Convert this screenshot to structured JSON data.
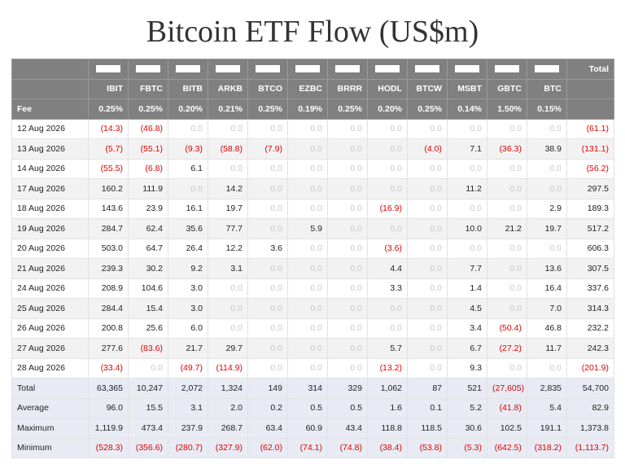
{
  "title": "Bitcoin ETF Flow (US$m)",
  "table": {
    "total_header": "Total",
    "tickers": [
      "IBIT",
      "FBTC",
      "BITB",
      "ARKB",
      "BTCO",
      "EZBC",
      "BRRR",
      "HODL",
      "BTCW",
      "MSBT",
      "GBTC",
      "BTC"
    ],
    "fee": {
      "label": "Fee",
      "values": [
        "0.25%",
        "0.25%",
        "0.20%",
        "0.21%",
        "0.25%",
        "0.19%",
        "0.25%",
        "0.20%",
        "0.25%",
        "0.14%",
        "1.50%",
        "0.15%"
      ]
    },
    "rows": [
      [
        "12 Aug 2026",
        "(14.3)",
        "(46.8)",
        "0.0",
        "0.0",
        "0.0",
        "0.0",
        "0.0",
        "0.0",
        "0.0",
        "0.0",
        "0.0",
        "0.0",
        "(61.1)"
      ],
      [
        "13 Aug 2026",
        "(5.7)",
        "(55.1)",
        "(9.3)",
        "(58.8)",
        "(7.9)",
        "0.0",
        "0.0",
        "0.0",
        "(4.0)",
        "7.1",
        "(36.3)",
        "38.9",
        "(131.1)"
      ],
      [
        "14 Aug 2026",
        "(55.5)",
        "(6.8)",
        "6.1",
        "0.0",
        "0.0",
        "0.0",
        "0.0",
        "0.0",
        "0.0",
        "0.0",
        "0.0",
        "0.0",
        "(56.2)"
      ],
      [
        "17 Aug 2026",
        "160.2",
        "111.9",
        "0.0",
        "14.2",
        "0.0",
        "0.0",
        "0.0",
        "0.0",
        "0.0",
        "11.2",
        "0.0",
        "0.0",
        "297.5"
      ],
      [
        "18 Aug 2026",
        "143.6",
        "23.9",
        "16.1",
        "19.7",
        "0.0",
        "0.0",
        "0.0",
        "(16.9)",
        "0.0",
        "0.0",
        "0.0",
        "2.9",
        "189.3"
      ],
      [
        "19 Aug 2026",
        "284.7",
        "62.4",
        "35.6",
        "77.7",
        "0.0",
        "5.9",
        "0.0",
        "0.0",
        "0.0",
        "10.0",
        "21.2",
        "19.7",
        "517.2"
      ],
      [
        "20 Aug 2026",
        "503.0",
        "64.7",
        "26.4",
        "12.2",
        "3.6",
        "0.0",
        "0.0",
        "(3.6)",
        "0.0",
        "0.0",
        "0.0",
        "0.0",
        "606.3"
      ],
      [
        "21 Aug 2026",
        "239.3",
        "30.2",
        "9.2",
        "3.1",
        "0.0",
        "0.0",
        "0.0",
        "4.4",
        "0.0",
        "7.7",
        "0.0",
        "13.6",
        "307.5"
      ],
      [
        "24 Aug 2026",
        "208.9",
        "104.6",
        "3.0",
        "0.0",
        "0.0",
        "0.0",
        "0.0",
        "3.3",
        "0.0",
        "1.4",
        "0.0",
        "16.4",
        "337.6"
      ],
      [
        "25 Aug 2026",
        "284.4",
        "15.4",
        "3.0",
        "0.0",
        "0.0",
        "0.0",
        "0.0",
        "0.0",
        "0.0",
        "4.5",
        "0.0",
        "7.0",
        "314.3"
      ],
      [
        "26 Aug 2026",
        "200.8",
        "25.6",
        "6.0",
        "0.0",
        "0.0",
        "0.0",
        "0.0",
        "0.0",
        "0.0",
        "3.4",
        "(50.4)",
        "46.8",
        "232.2"
      ],
      [
        "27 Aug 2026",
        "277.6",
        "(83.6)",
        "21.7",
        "29.7",
        "0.0",
        "0.0",
        "0.0",
        "5.7",
        "0.0",
        "6.7",
        "(27.2)",
        "11.7",
        "242.3"
      ],
      [
        "28 Aug 2026",
        "(33.4)",
        "0.0",
        "(49.7)",
        "(114.9)",
        "0.0",
        "0.0",
        "0.0",
        "(13.2)",
        "0.0",
        "9.3",
        "0.0",
        "0.0",
        "(201.9)"
      ]
    ],
    "summary": [
      [
        "Total",
        "63,365",
        "10,247",
        "2,072",
        "1,324",
        "149",
        "314",
        "329",
        "1,062",
        "87",
        "521",
        "(27,605)",
        "2,835",
        "54,700"
      ],
      [
        "Average",
        "96.0",
        "15.5",
        "3.1",
        "2.0",
        "0.2",
        "0.5",
        "0.5",
        "1.6",
        "0.1",
        "5.2",
        "(41.8)",
        "5.4",
        "82.9"
      ],
      [
        "Maximum",
        "1,119.9",
        "473.4",
        "237.9",
        "268.7",
        "63.4",
        "60.9",
        "43.4",
        "118.8",
        "118.5",
        "30.6",
        "102.5",
        "191.1",
        "1,373.8"
      ],
      [
        "Minimum",
        "(528.3)",
        "(356.6)",
        "(280.7)",
        "(327.9)",
        "(62.0)",
        "(74.1)",
        "(74.8)",
        "(38.4)",
        "(53.8)",
        "(5.3)",
        "(642.5)",
        "(318.2)",
        "(1,113.7)"
      ]
    ]
  }
}
